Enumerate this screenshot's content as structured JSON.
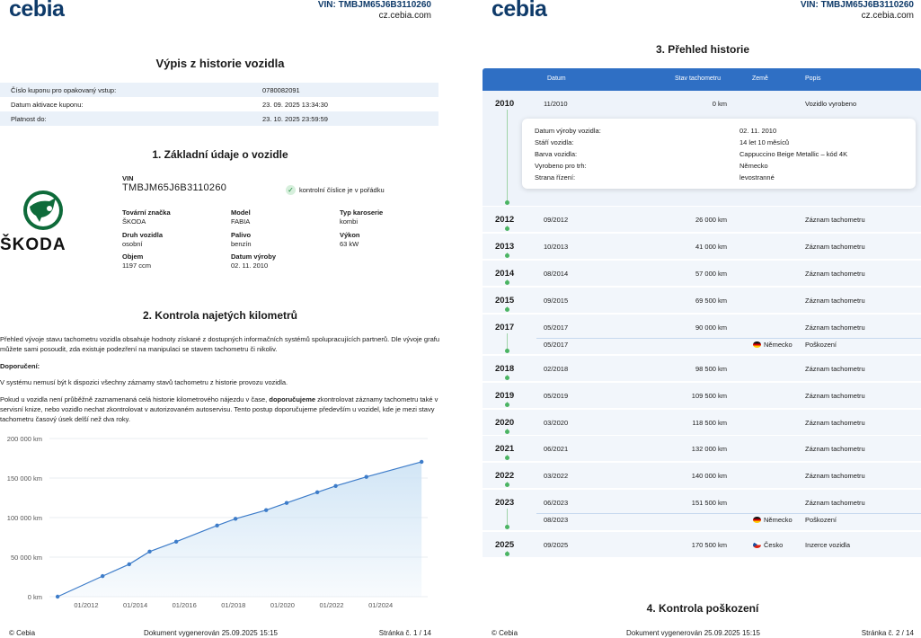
{
  "brand": "cebia",
  "vin_header": "VIN: TMBJM65J6B3110260",
  "site": "cz.cebia.com",
  "page1": {
    "title": "Výpis z historie vozidla",
    "coupon": [
      {
        "label": "Číslo kuponu pro opakovaný vstup:",
        "value": "0780082091"
      },
      {
        "label": "Datum aktivace kuponu:",
        "value": "23. 09. 2025 13:34:30"
      },
      {
        "label": "Platnost do:",
        "value": "23. 10. 2025 23:59:59"
      }
    ],
    "section1": {
      "title": "1. Základní údaje o vozidle",
      "logo_text": "ŠKODA",
      "vin_label": "VIN",
      "vin_value": "TMBJM65J6B3110260",
      "check_text": "kontrolní číslice je v pořádku",
      "fields": [
        {
          "label": "Tovární značka",
          "value": "ŠKODA"
        },
        {
          "label": "Model",
          "value": "FABIA"
        },
        {
          "label": "Typ karoserie",
          "value": "kombi"
        },
        {
          "label": "Druh vozidla",
          "value": "osobní"
        },
        {
          "label": "Palivo",
          "value": "benzín"
        },
        {
          "label": "Výkon",
          "value": "63 kW"
        },
        {
          "label": "Objem",
          "value": "1197 ccm"
        },
        {
          "label": "Datum výroby",
          "value": "02. 11. 2010"
        }
      ]
    },
    "section2": {
      "title": "2. Kontrola najetých kilometrů",
      "p1": "Přehled vývoje stavu tachometru vozidla obsahuje hodnoty získané z dostupných informačních systémů spolupracujících partnerů. Dle vývoje grafu můžete sami posoudit, zda existuje podezření na manipulaci se stavem tachometru či nikoliv.",
      "rec_label": "Doporučení:",
      "p2": "V systému nemusí být k dispozici všechny záznamy stavů tachometru z historie provozu vozidla.",
      "p3a": "Pokud u vozidla není průběžně zaznamenaná celá historie kilometrového nájezdu v čase, ",
      "p3b": "doporučujeme",
      "p3c": " zkontrolovat záznamy tachometru také v servisní knize, nebo vozidlo nechat zkontrolovat v autorizovaném autoservisu. Tento postup doporučujeme především u vozidel, kde je mezi stavy tachometru časový úsek delší než dva roky."
    },
    "footer": {
      "left": "© Cebia",
      "center": "Dokument vygenerován 25.09.2025 15:15",
      "right": "Stránka č. 1 / 14"
    }
  },
  "chart_data": {
    "type": "area",
    "title": "",
    "xlabel": "",
    "ylabel": "",
    "y_ticks": [
      "0 km",
      "50 000 km",
      "100 000 km",
      "150 000 km",
      "200 000 km"
    ],
    "x_ticks": [
      "01/2012",
      "01/2014",
      "01/2016",
      "01/2018",
      "01/2020",
      "01/2022",
      "01/2024"
    ],
    "ylim": [
      0,
      200000
    ],
    "xlim": [
      "2010-07",
      "2025-12"
    ],
    "x": [
      "2010-11",
      "2012-09",
      "2013-10",
      "2014-08",
      "2015-09",
      "2017-05",
      "2018-02",
      "2019-05",
      "2020-03",
      "2021-06",
      "2022-03",
      "2023-06",
      "2025-09"
    ],
    "values": [
      0,
      26000,
      41000,
      57000,
      69500,
      90000,
      98500,
      109500,
      118500,
      132000,
      140000,
      151500,
      170500
    ],
    "grid": true,
    "line_color": "#3d7cc9",
    "fill_color": "#cfe4f5"
  },
  "page2": {
    "title": "3. Přehled historie",
    "headers": {
      "date": "Datum",
      "odo": "Stav tachometru",
      "country": "Země",
      "desc": "Popis"
    },
    "popup": [
      {
        "label": "Datum výroby vozidla:",
        "value": "02. 11. 2010"
      },
      {
        "label": "Stáří vozidla:",
        "value": "14 let 10 měsíců"
      },
      {
        "label": "Barva vozidla:",
        "value": "Cappuccino Beige Metallic – kód 4K"
      },
      {
        "label": "Vyrobeno pro trh:",
        "value": "Německo"
      },
      {
        "label": "Strana řízení:",
        "value": "levostranné"
      }
    ],
    "years": [
      {
        "year": "2010",
        "entries": [
          {
            "date": "11/2010",
            "km": "0 km",
            "country": "",
            "desc": "Vozidlo vyrobeno"
          }
        ]
      },
      {
        "year": "2012",
        "entries": [
          {
            "date": "09/2012",
            "km": "26 000 km",
            "country": "",
            "desc": "Záznam tachometru"
          }
        ]
      },
      {
        "year": "2013",
        "entries": [
          {
            "date": "10/2013",
            "km": "41 000 km",
            "country": "",
            "desc": "Záznam tachometru"
          }
        ]
      },
      {
        "year": "2014",
        "entries": [
          {
            "date": "08/2014",
            "km": "57 000 km",
            "country": "",
            "desc": "Záznam tachometru"
          }
        ]
      },
      {
        "year": "2015",
        "entries": [
          {
            "date": "09/2015",
            "km": "69 500 km",
            "country": "",
            "desc": "Záznam tachometru"
          }
        ]
      },
      {
        "year": "2017",
        "entries": [
          {
            "date": "05/2017",
            "km": "90 000 km",
            "country": "",
            "desc": "Záznam tachometru"
          },
          {
            "date": "05/2017",
            "km": "",
            "country": "Německo",
            "flag": "de",
            "desc": "Poškození"
          }
        ]
      },
      {
        "year": "2018",
        "entries": [
          {
            "date": "02/2018",
            "km": "98 500 km",
            "country": "",
            "desc": "Záznam tachometru"
          }
        ]
      },
      {
        "year": "2019",
        "entries": [
          {
            "date": "05/2019",
            "km": "109 500 km",
            "country": "",
            "desc": "Záznam tachometru"
          }
        ]
      },
      {
        "year": "2020",
        "entries": [
          {
            "date": "03/2020",
            "km": "118 500 km",
            "country": "",
            "desc": "Záznam tachometru"
          }
        ]
      },
      {
        "year": "2021",
        "entries": [
          {
            "date": "06/2021",
            "km": "132 000 km",
            "country": "",
            "desc": "Záznam tachometru"
          }
        ]
      },
      {
        "year": "2022",
        "entries": [
          {
            "date": "03/2022",
            "km": "140 000 km",
            "country": "",
            "desc": "Záznam tachometru"
          }
        ]
      },
      {
        "year": "2023",
        "entries": [
          {
            "date": "06/2023",
            "km": "151 500 km",
            "country": "",
            "desc": "Záznam tachometru"
          },
          {
            "date": "08/2023",
            "km": "",
            "country": "Německo",
            "flag": "de",
            "desc": "Poškození"
          }
        ]
      },
      {
        "year": "2025",
        "entries": [
          {
            "date": "09/2025",
            "km": "170 500 km",
            "country": "Česko",
            "flag": "cz",
            "desc": "Inzerce vozidla"
          }
        ]
      }
    ],
    "section4_title": "4. Kontrola poškození",
    "footer": {
      "left": "© Cebia",
      "center": "Dokument vygenerován 25.09.2025 15:15",
      "right": "Stránka č. 2 / 14"
    }
  }
}
